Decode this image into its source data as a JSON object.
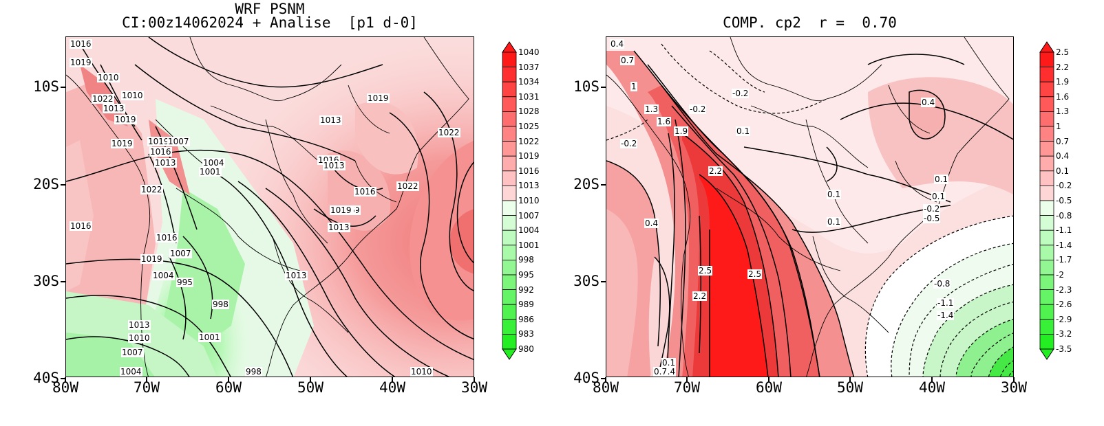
{
  "panel1": {
    "title_line1": "WRF PSNM",
    "title_line2": "CI:00z14062024 + Analise  [p1 d-0]",
    "colorbar": [
      "1040",
      "1037",
      "1034",
      "1031",
      "1028",
      "1025",
      "1022",
      "1019",
      "1016",
      "1013",
      "1010",
      "1007",
      "1004",
      "1001",
      "998",
      "995",
      "992",
      "989",
      "986",
      "983",
      "980"
    ],
    "contour_labels": [
      "1016",
      "1019",
      "1010",
      "1010",
      "1022",
      "1013",
      "1019",
      "1019",
      "1019",
      "1007",
      "1016",
      "1013",
      "1004",
      "1001",
      "1022",
      "1016",
      "1016",
      "1019",
      "1007",
      "1004",
      "995",
      "998",
      "1013",
      "1010",
      "1007",
      "1004",
      "1001",
      "998",
      "1013",
      "1010",
      "1013",
      "1016",
      "1019",
      "1016",
      "1019",
      "1022",
      "1022",
      "1019",
      "1016",
      "1013",
      "1022",
      "1019",
      "1013"
    ]
  },
  "panel2": {
    "title": "COMP. cp2  r =  0.70",
    "colorbar": [
      "2.5",
      "2.2",
      "1.9",
      "1.6",
      "1.3",
      "1",
      "0.7",
      "0.4",
      "0.1",
      "-0.2",
      "-0.5",
      "-0.8",
      "-1.1",
      "-1.4",
      "-1.7",
      "-2",
      "-2.3",
      "-2.6",
      "-2.9",
      "-3.2",
      "-3.5"
    ],
    "contour_labels": [
      "0.4",
      "0.7",
      "1",
      "1.3",
      "1.6",
      "1.9",
      "-0.2",
      "-0.2",
      "-0.2",
      "0.1",
      "2.2",
      "0.4",
      "2.5",
      "2.5",
      "2.2",
      "0.1",
      "0.4",
      "0.7",
      "0.1",
      "0.4",
      "0.1",
      "0.1",
      "-0.2",
      "-0.5",
      "0.1",
      "-0.8",
      "-1.1",
      "-1.4"
    ]
  },
  "axes": {
    "x_ticks": [
      "80W",
      "70W",
      "60W",
      "50W",
      "40W",
      "30W"
    ],
    "y_ticks": [
      "10S",
      "20S",
      "30S",
      "40S"
    ]
  },
  "colors": {
    "pos_max": "#ff1a1a",
    "neg_max": "#22ee22",
    "neutral": "#ffffff"
  }
}
